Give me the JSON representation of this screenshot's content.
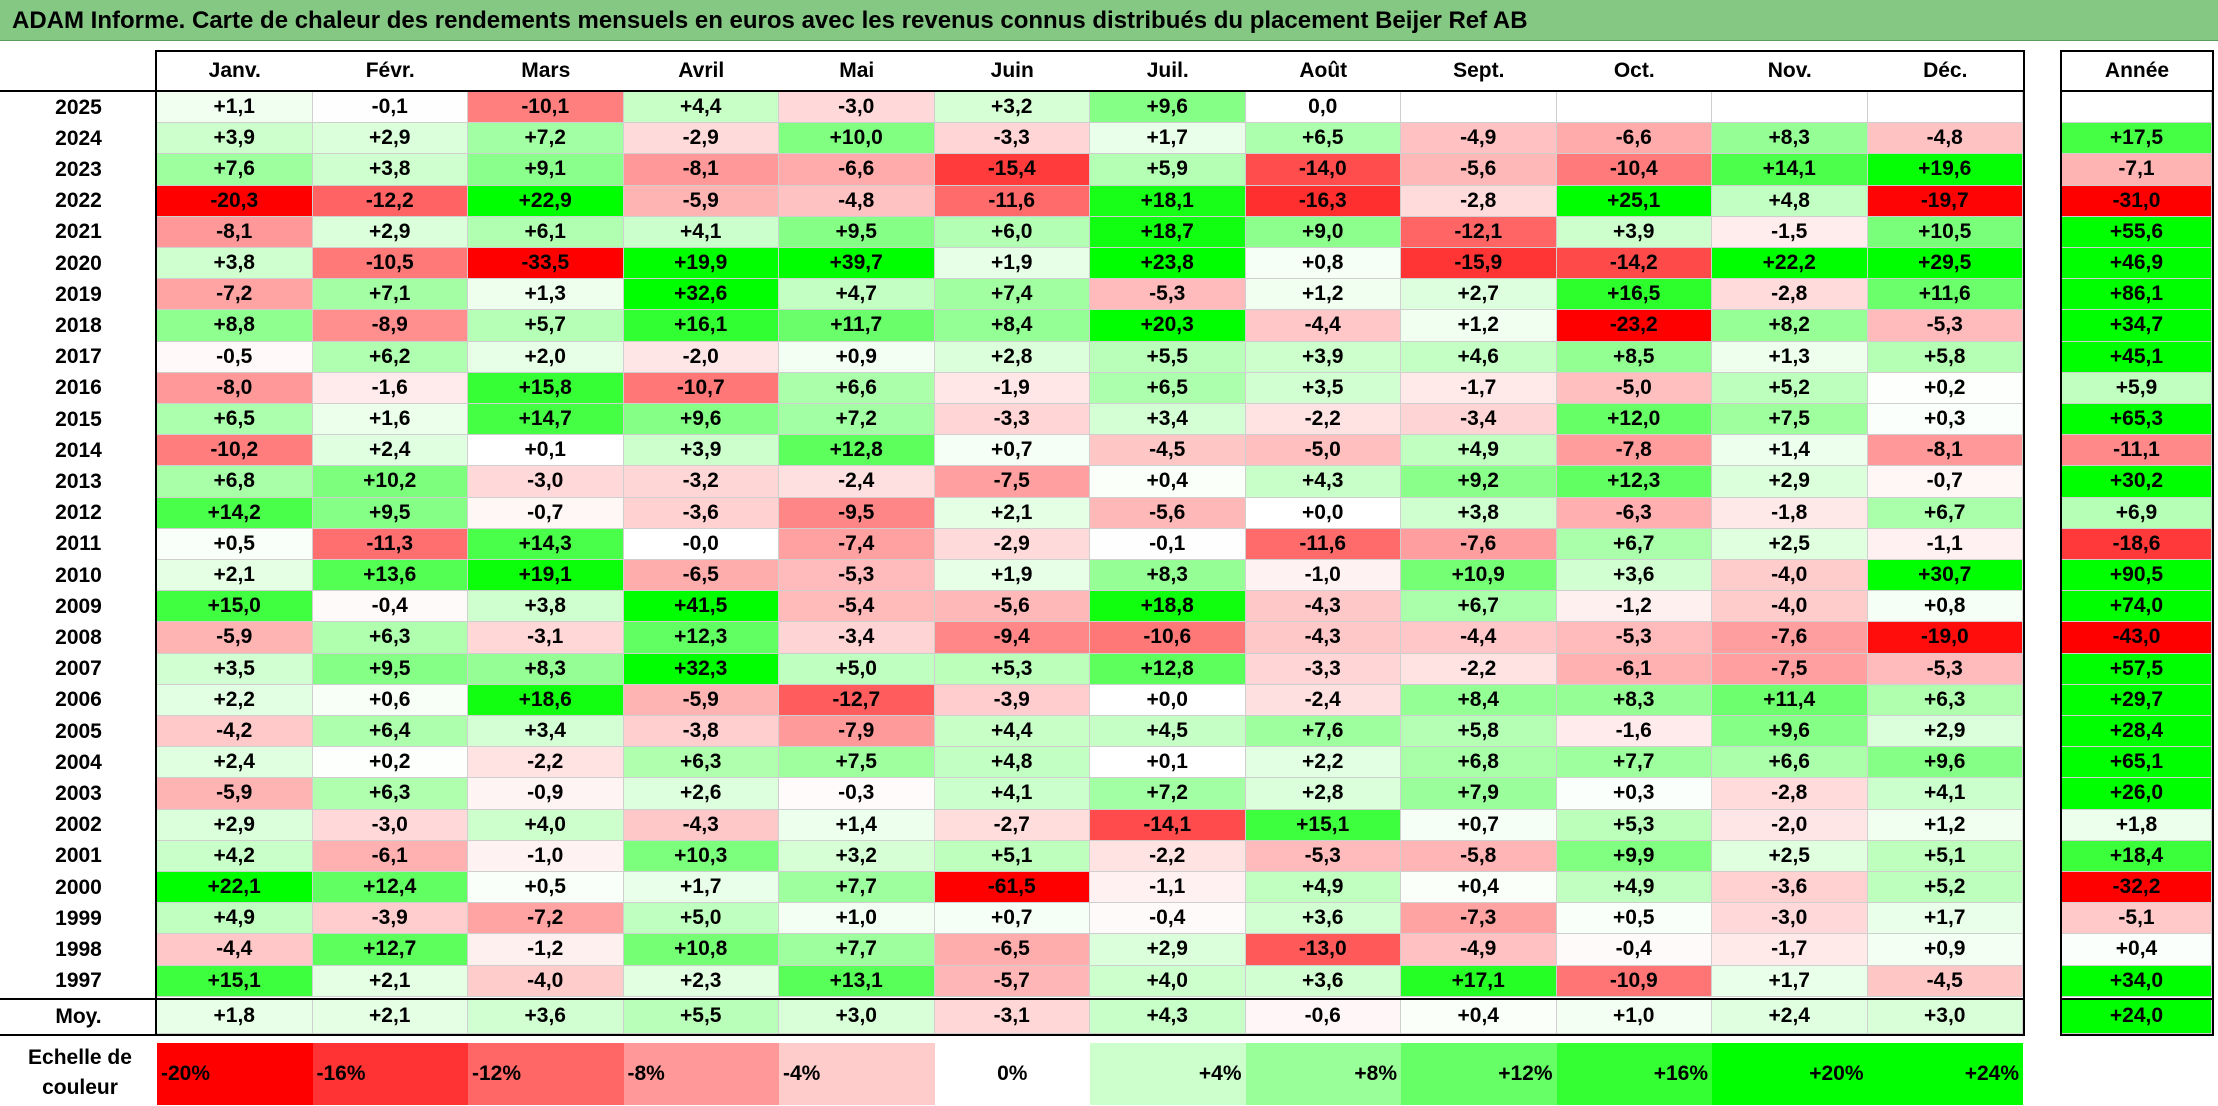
{
  "title": "ADAM Informe. Carte de chaleur des rendements mensuels en euros avec les revenus connus distribués du placement Beijer Ref AB",
  "chart_data": {
    "type": "heatmap",
    "title": "ADAM Informe. Carte de chaleur des rendements mensuels en euros avec les revenus connus distribués du placement Beijer Ref AB",
    "months": [
      "Janv.",
      "Févr.",
      "Mars",
      "Avril",
      "Mai",
      "Juin",
      "Juil.",
      "Août",
      "Sept.",
      "Oct.",
      "Nov.",
      "Déc."
    ],
    "year_header": "Année",
    "average_label": "Moy.",
    "rows": [
      {
        "year": "2025",
        "values": [
          "+1,1",
          "-0,1",
          "-10,1",
          "+4,4",
          "-3,0",
          "+3,2",
          "+9,6",
          "0,0",
          "",
          "",
          "",
          ""
        ],
        "total": ""
      },
      {
        "year": "2024",
        "values": [
          "+3,9",
          "+2,9",
          "+7,2",
          "-2,9",
          "+10,0",
          "-3,3",
          "+1,7",
          "+6,5",
          "-4,9",
          "-6,6",
          "+8,3",
          "-4,8"
        ],
        "total": "+17,5"
      },
      {
        "year": "2023",
        "values": [
          "+7,6",
          "+3,8",
          "+9,1",
          "-8,1",
          "-6,6",
          "-15,4",
          "+5,9",
          "-14,0",
          "-5,6",
          "-10,4",
          "+14,1",
          "+19,6"
        ],
        "total": "-7,1"
      },
      {
        "year": "2022",
        "values": [
          "-20,3",
          "-12,2",
          "+22,9",
          "-5,9",
          "-4,8",
          "-11,6",
          "+18,1",
          "-16,3",
          "-2,8",
          "+25,1",
          "+4,8",
          "-19,7"
        ],
        "total": "-31,0"
      },
      {
        "year": "2021",
        "values": [
          "-8,1",
          "+2,9",
          "+6,1",
          "+4,1",
          "+9,5",
          "+6,0",
          "+18,7",
          "+9,0",
          "-12,1",
          "+3,9",
          "-1,5",
          "+10,5"
        ],
        "total": "+55,6"
      },
      {
        "year": "2020",
        "values": [
          "+3,8",
          "-10,5",
          "-33,5",
          "+19,9",
          "+39,7",
          "+1,9",
          "+23,8",
          "+0,8",
          "-15,9",
          "-14,2",
          "+22,2",
          "+29,5"
        ],
        "total": "+46,9"
      },
      {
        "year": "2019",
        "values": [
          "-7,2",
          "+7,1",
          "+1,3",
          "+32,6",
          "+4,7",
          "+7,4",
          "-5,3",
          "+1,2",
          "+2,7",
          "+16,5",
          "-2,8",
          "+11,6"
        ],
        "total": "+86,1"
      },
      {
        "year": "2018",
        "values": [
          "+8,8",
          "-8,9",
          "+5,7",
          "+16,1",
          "+11,7",
          "+8,4",
          "+20,3",
          "-4,4",
          "+1,2",
          "-23,2",
          "+8,2",
          "-5,3"
        ],
        "total": "+34,7"
      },
      {
        "year": "2017",
        "values": [
          "-0,5",
          "+6,2",
          "+2,0",
          "-2,0",
          "+0,9",
          "+2,8",
          "+5,5",
          "+3,9",
          "+4,6",
          "+8,5",
          "+1,3",
          "+5,8"
        ],
        "total": "+45,1"
      },
      {
        "year": "2016",
        "values": [
          "-8,0",
          "-1,6",
          "+15,8",
          "-10,7",
          "+6,6",
          "-1,9",
          "+6,5",
          "+3,5",
          "-1,7",
          "-5,0",
          "+5,2",
          "+0,2"
        ],
        "total": "+5,9"
      },
      {
        "year": "2015",
        "values": [
          "+6,5",
          "+1,6",
          "+14,7",
          "+9,6",
          "+7,2",
          "-3,3",
          "+3,4",
          "-2,2",
          "-3,4",
          "+12,0",
          "+7,5",
          "+0,3"
        ],
        "total": "+65,3"
      },
      {
        "year": "2014",
        "values": [
          "-10,2",
          "+2,4",
          "+0,1",
          "+3,9",
          "+12,8",
          "+0,7",
          "-4,5",
          "-5,0",
          "+4,9",
          "-7,8",
          "+1,4",
          "-8,1"
        ],
        "total": "-11,1"
      },
      {
        "year": "2013",
        "values": [
          "+6,8",
          "+10,2",
          "-3,0",
          "-3,2",
          "-2,4",
          "-7,5",
          "+0,4",
          "+4,3",
          "+9,2",
          "+12,3",
          "+2,9",
          "-0,7"
        ],
        "total": "+30,2"
      },
      {
        "year": "2012",
        "values": [
          "+14,2",
          "+9,5",
          "-0,7",
          "-3,6",
          "-9,5",
          "+2,1",
          "-5,6",
          "+0,0",
          "+3,8",
          "-6,3",
          "-1,8",
          "+6,7"
        ],
        "total": "+6,9"
      },
      {
        "year": "2011",
        "values": [
          "+0,5",
          "-11,3",
          "+14,3",
          "-0,0",
          "-7,4",
          "-2,9",
          "-0,1",
          "-11,6",
          "-7,6",
          "+6,7",
          "+2,5",
          "-1,1"
        ],
        "total": "-18,6"
      },
      {
        "year": "2010",
        "values": [
          "+2,1",
          "+13,6",
          "+19,1",
          "-6,5",
          "-5,3",
          "+1,9",
          "+8,3",
          "-1,0",
          "+10,9",
          "+3,6",
          "-4,0",
          "+30,7"
        ],
        "total": "+90,5"
      },
      {
        "year": "2009",
        "values": [
          "+15,0",
          "-0,4",
          "+3,8",
          "+41,5",
          "-5,4",
          "-5,6",
          "+18,8",
          "-4,3",
          "+6,7",
          "-1,2",
          "-4,0",
          "+0,8"
        ],
        "total": "+74,0"
      },
      {
        "year": "2008",
        "values": [
          "-5,9",
          "+6,3",
          "-3,1",
          "+12,3",
          "-3,4",
          "-9,4",
          "-10,6",
          "-4,3",
          "-4,4",
          "-5,3",
          "-7,6",
          "-19,0"
        ],
        "total": "-43,0"
      },
      {
        "year": "2007",
        "values": [
          "+3,5",
          "+9,5",
          "+8,3",
          "+32,3",
          "+5,0",
          "+5,3",
          "+12,8",
          "-3,3",
          "-2,2",
          "-6,1",
          "-7,5",
          "-5,3"
        ],
        "total": "+57,5"
      },
      {
        "year": "2006",
        "values": [
          "+2,2",
          "+0,6",
          "+18,6",
          "-5,9",
          "-12,7",
          "-3,9",
          "+0,0",
          "-2,4",
          "+8,4",
          "+8,3",
          "+11,4",
          "+6,3"
        ],
        "total": "+29,7"
      },
      {
        "year": "2005",
        "values": [
          "-4,2",
          "+6,4",
          "+3,4",
          "-3,8",
          "-7,9",
          "+4,4",
          "+4,5",
          "+7,6",
          "+5,8",
          "-1,6",
          "+9,6",
          "+2,9"
        ],
        "total": "+28,4"
      },
      {
        "year": "2004",
        "values": [
          "+2,4",
          "+0,2",
          "-2,2",
          "+6,3",
          "+7,5",
          "+4,8",
          "+0,1",
          "+2,2",
          "+6,8",
          "+7,7",
          "+6,6",
          "+9,6"
        ],
        "total": "+65,1"
      },
      {
        "year": "2003",
        "values": [
          "-5,9",
          "+6,3",
          "-0,9",
          "+2,6",
          "-0,3",
          "+4,1",
          "+7,2",
          "+2,8",
          "+7,9",
          "+0,3",
          "-2,8",
          "+4,1"
        ],
        "total": "+26,0"
      },
      {
        "year": "2002",
        "values": [
          "+2,9",
          "-3,0",
          "+4,0",
          "-4,3",
          "+1,4",
          "-2,7",
          "-14,1",
          "+15,1",
          "+0,7",
          "+5,3",
          "-2,0",
          "+1,2"
        ],
        "total": "+1,8"
      },
      {
        "year": "2001",
        "values": [
          "+4,2",
          "-6,1",
          "-1,0",
          "+10,3",
          "+3,2",
          "+5,1",
          "-2,2",
          "-5,3",
          "-5,8",
          "+9,9",
          "+2,5",
          "+5,1"
        ],
        "total": "+18,4"
      },
      {
        "year": "2000",
        "values": [
          "+22,1",
          "+12,4",
          "+0,5",
          "+1,7",
          "+7,7",
          "-61,5",
          "-1,1",
          "+4,9",
          "+0,4",
          "+4,9",
          "-3,6",
          "+5,2"
        ],
        "total": "-32,2"
      },
      {
        "year": "1999",
        "values": [
          "+4,9",
          "-3,9",
          "-7,2",
          "+5,0",
          "+1,0",
          "+0,7",
          "-0,4",
          "+3,6",
          "-7,3",
          "+0,5",
          "-3,0",
          "+1,7"
        ],
        "total": "-5,1"
      },
      {
        "year": "1998",
        "values": [
          "-4,4",
          "+12,7",
          "-1,2",
          "+10,8",
          "+7,7",
          "-6,5",
          "+2,9",
          "-13,0",
          "-4,9",
          "-0,4",
          "-1,7",
          "+0,9"
        ],
        "total": "+0,4"
      },
      {
        "year": "1997",
        "values": [
          "+15,1",
          "+2,1",
          "-4,0",
          "+2,3",
          "+13,1",
          "-5,7",
          "+4,0",
          "+3,6",
          "+17,1",
          "-10,9",
          "+1,7",
          "-4,5"
        ],
        "total": "+34,0"
      }
    ],
    "average": {
      "values": [
        "+1,8",
        "+2,1",
        "+3,6",
        "+5,5",
        "+3,0",
        "-3,1",
        "+4,3",
        "-0,6",
        "+0,4",
        "+1,0",
        "+2,4",
        "+3,0"
      ],
      "total": "+24,0"
    },
    "scale": {
      "label": "Echelle de couleur",
      "steps": [
        "-20%",
        "-16%",
        "-12%",
        "-8%",
        "-4%",
        "0%",
        "+4%",
        "+8%",
        "+12%",
        "+16%",
        "+20%",
        "+24%"
      ],
      "step_values": [
        -20,
        -16,
        -12,
        -8,
        -4,
        0,
        4,
        8,
        12,
        16,
        20,
        24
      ]
    },
    "colors": {
      "negative": "#ff0000",
      "neutral": "#ffffff",
      "positive": "#00ff00"
    }
  }
}
